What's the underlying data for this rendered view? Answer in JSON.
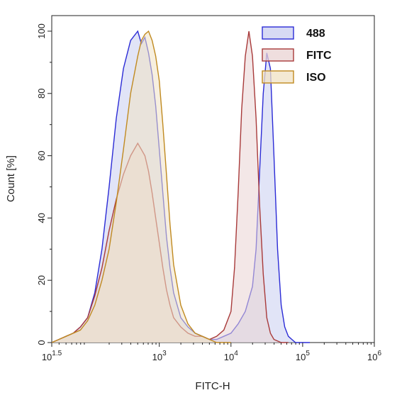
{
  "chart_data": {
    "type": "area",
    "title": "",
    "xlabel": "FITC-H",
    "ylabel": "Count [%]",
    "xscale": "log",
    "xlim_log10": [
      1.5,
      6
    ],
    "ylim": [
      0,
      105
    ],
    "x_ticks": [
      {
        "pos": 1.5,
        "base": "10",
        "exp": "1.5"
      },
      {
        "pos": 3,
        "base": "10",
        "exp": "3"
      },
      {
        "pos": 4,
        "base": "10",
        "exp": "4"
      },
      {
        "pos": 5,
        "base": "10",
        "exp": "5"
      },
      {
        "pos": 6,
        "base": "10",
        "exp": "6"
      }
    ],
    "y_ticks": [
      "0",
      "20",
      "40",
      "60",
      "80",
      "100"
    ],
    "y_tick_values": [
      0,
      20,
      40,
      60,
      80,
      100
    ],
    "grid": false,
    "legend_position": "top-right",
    "series": [
      {
        "name": "488",
        "color": "#2b2bd6",
        "fill": "#c9cdf0",
        "log_x": [
          1.5,
          1.6,
          1.7,
          1.8,
          1.9,
          2.0,
          2.1,
          2.2,
          2.3,
          2.4,
          2.5,
          2.6,
          2.7,
          2.75,
          2.8,
          2.85,
          2.9,
          2.95,
          3.0,
          3.05,
          3.1,
          3.15,
          3.2,
          3.3,
          3.4,
          3.5,
          3.6,
          3.7,
          3.8,
          3.9,
          4.0,
          4.1,
          4.2,
          4.3,
          4.35,
          4.4,
          4.45,
          4.5,
          4.55,
          4.6,
          4.65,
          4.7,
          4.75,
          4.8,
          4.85,
          4.9,
          5.0,
          5.1
        ],
        "y": [
          0,
          1,
          2,
          3,
          5,
          8,
          16,
          30,
          50,
          72,
          88,
          97,
          100,
          96,
          98,
          93,
          86,
          76,
          62,
          48,
          34,
          24,
          16,
          8,
          5,
          3,
          2,
          1,
          1,
          2,
          3,
          6,
          10,
          18,
          30,
          55,
          80,
          93,
          88,
          60,
          30,
          12,
          5,
          2,
          1,
          0,
          0,
          0
        ]
      },
      {
        "name": "FITC",
        "color": "#a83a3a",
        "fill": "#ead3d3",
        "log_x": [
          1.5,
          1.6,
          1.7,
          1.8,
          1.9,
          2.0,
          2.1,
          2.2,
          2.3,
          2.4,
          2.5,
          2.6,
          2.7,
          2.75,
          2.8,
          2.85,
          2.9,
          2.95,
          3.0,
          3.05,
          3.1,
          3.15,
          3.2,
          3.3,
          3.4,
          3.5,
          3.6,
          3.7,
          3.8,
          3.9,
          4.0,
          4.05,
          4.1,
          4.15,
          4.2,
          4.25,
          4.3,
          4.35,
          4.4,
          4.45,
          4.5,
          4.55,
          4.6,
          4.7,
          4.8
        ],
        "y": [
          0,
          1,
          2,
          3,
          5,
          8,
          15,
          24,
          36,
          46,
          54,
          60,
          64,
          62,
          60,
          55,
          48,
          40,
          32,
          24,
          17,
          12,
          8,
          5,
          3,
          2,
          2,
          1,
          2,
          4,
          10,
          24,
          48,
          75,
          92,
          100,
          92,
          72,
          44,
          22,
          8,
          3,
          1,
          0,
          0
        ]
      },
      {
        "name": "ISO",
        "color": "#c08a20",
        "fill": "#f0e2c4",
        "log_x": [
          1.5,
          1.6,
          1.7,
          1.8,
          1.9,
          2.0,
          2.1,
          2.2,
          2.3,
          2.4,
          2.5,
          2.6,
          2.7,
          2.75,
          2.8,
          2.85,
          2.9,
          2.95,
          3.0,
          3.05,
          3.1,
          3.15,
          3.2,
          3.3,
          3.4,
          3.5,
          3.6,
          3.7,
          3.8,
          3.9,
          4.0
        ],
        "y": [
          0,
          1,
          2,
          3,
          4,
          7,
          12,
          20,
          30,
          45,
          62,
          80,
          92,
          97,
          99,
          100,
          97,
          92,
          84,
          70,
          54,
          38,
          25,
          12,
          6,
          3,
          2,
          1,
          0,
          0,
          0
        ]
      }
    ]
  }
}
